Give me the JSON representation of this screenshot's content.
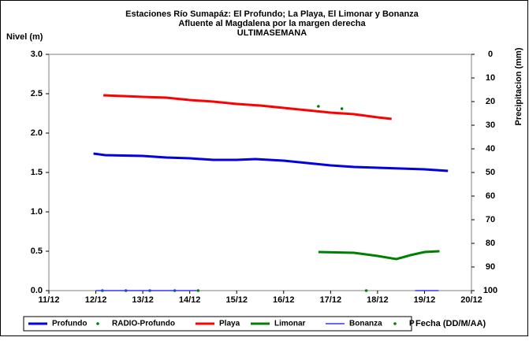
{
  "chart_data": {
    "type": "line",
    "title": [
      "Estaciones Río Sumapáz: El Profundo; La Playa, El Limonar y Bonanza",
      "Afluente al Magdalena por la margen derecha",
      "ULTIMASEMANA"
    ],
    "ylabel": "Nivel (m)",
    "y2label": "Precipitacion (mm)",
    "xlabel": "Fecha (DD/M/AA)",
    "xlim": [
      11,
      20
    ],
    "xticks": [
      {
        "value": 11,
        "label": "11/12"
      },
      {
        "value": 12,
        "label": "12/12"
      },
      {
        "value": 13,
        "label": "13/12"
      },
      {
        "value": 14,
        "label": "14/12"
      },
      {
        "value": 15,
        "label": "15/12"
      },
      {
        "value": 16,
        "label": "16/12"
      },
      {
        "value": 17,
        "label": "17/12"
      },
      {
        "value": 18,
        "label": "18/12"
      },
      {
        "value": 19,
        "label": "19/12"
      },
      {
        "value": 20,
        "label": "20/12"
      }
    ],
    "ylim": [
      0,
      3
    ],
    "yticks": [
      {
        "value": 0,
        "label": "0.0"
      },
      {
        "value": 0.5,
        "label": "0.5"
      },
      {
        "value": 1,
        "label": "1.0"
      },
      {
        "value": 1.5,
        "label": "1.5"
      },
      {
        "value": 2,
        "label": "2.0"
      },
      {
        "value": 2.5,
        "label": "2.5"
      },
      {
        "value": 3,
        "label": "3.0"
      }
    ],
    "y2lim": [
      100,
      0
    ],
    "y2ticks": [
      0,
      10,
      20,
      30,
      40,
      50,
      60,
      70,
      80,
      90,
      100
    ],
    "grid": false,
    "series": [
      {
        "name": "Profundo",
        "color": "#0000e0",
        "style": "line",
        "width": 3,
        "x": [
          11.95,
          12.2,
          13,
          13.5,
          14,
          14.5,
          15,
          15.4,
          16,
          16.5,
          17,
          17.5,
          18,
          18.5,
          19,
          19.5
        ],
        "values": [
          1.74,
          1.72,
          1.71,
          1.69,
          1.68,
          1.66,
          1.66,
          1.67,
          1.65,
          1.62,
          1.59,
          1.57,
          1.56,
          1.55,
          1.54,
          1.52
        ]
      },
      {
        "name": "RADIO-Profundo",
        "color": "#008000",
        "style": "dots",
        "x": [
          12.14,
          12.64,
          13.15,
          13.68,
          14.18,
          17.76
        ],
        "values": [
          0,
          0,
          0,
          0,
          0,
          0
        ]
      },
      {
        "name": "Playa",
        "color": "#ff0000",
        "style": "line",
        "width": 3,
        "x": [
          12.16,
          13,
          13.5,
          14,
          14.5,
          15,
          15.5,
          16,
          16.5,
          17,
          17.5,
          18,
          18.3
        ],
        "values": [
          2.48,
          2.46,
          2.45,
          2.42,
          2.4,
          2.37,
          2.35,
          2.32,
          2.29,
          2.26,
          2.24,
          2.2,
          2.18
        ]
      },
      {
        "name": "Limonar",
        "color": "#008000",
        "style": "line",
        "width": 3,
        "x": [
          16.74,
          17.5,
          18,
          18.4,
          18.7,
          19,
          19.32
        ],
        "values": [
          0.49,
          0.48,
          0.44,
          0.4,
          0.45,
          0.49,
          0.5
        ]
      },
      {
        "name": "Bonanza",
        "color": "#3333ff",
        "style": "line",
        "width": 1.5,
        "x": [
          12,
          14.15,
          16,
          18.8,
          19.3
        ],
        "values": [
          0,
          0,
          null,
          0,
          0
        ]
      },
      {
        "name": "P",
        "color": "#008000",
        "style": "dots",
        "axis": "y2",
        "x": [
          16.74,
          17.24
        ],
        "values": [
          22,
          23
        ]
      }
    ]
  }
}
